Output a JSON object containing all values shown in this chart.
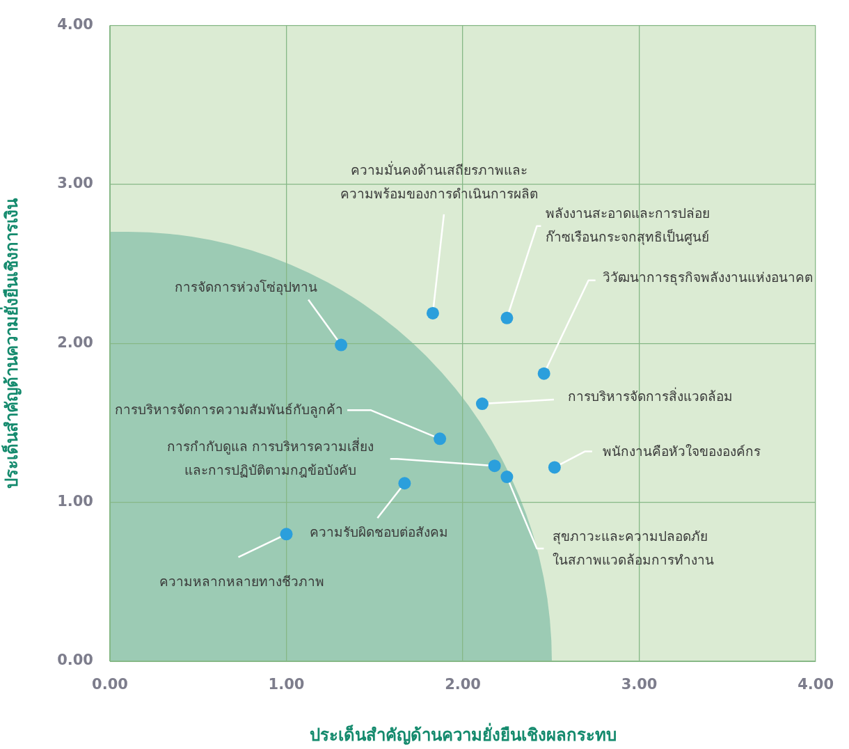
{
  "chart_data": {
    "type": "scatter",
    "xlabel": "ประเด็นสำคัญด้านความยั่งยืนเชิงผลกระทบ",
    "ylabel": "ประเด็นสำคัญด้านความยั่งยืนเชิงการเงิน",
    "xlim": [
      0,
      4
    ],
    "ylim": [
      0,
      4
    ],
    "xticks": [
      {
        "value": 0,
        "label": "0.00"
      },
      {
        "value": 1,
        "label": "1.00"
      },
      {
        "value": 2,
        "label": "2.00"
      },
      {
        "value": 3,
        "label": "3.00"
      },
      {
        "value": 4,
        "label": "4.00"
      }
    ],
    "yticks": [
      {
        "value": 0,
        "label": "0.00"
      },
      {
        "value": 1,
        "label": "1.00"
      },
      {
        "value": 2,
        "label": "2.00"
      },
      {
        "value": 3,
        "label": "3.00"
      },
      {
        "value": 4,
        "label": "4.00"
      }
    ],
    "grid": true,
    "legend": false,
    "marker": "circle",
    "series": [
      {
        "color": "#2b9fdc",
        "x": [
          1.0,
          1.67,
          1.31,
          1.87,
          1.83,
          2.25,
          2.46,
          2.11,
          2.18,
          2.25,
          2.52
        ],
        "values": [
          0.8,
          1.12,
          1.99,
          1.4,
          2.19,
          2.16,
          1.81,
          1.62,
          1.23,
          1.16,
          1.22
        ]
      }
    ],
    "annotations": [
      {
        "text": "ความหลากหลายทางชีวภาพ",
        "x": 1.0,
        "y": 0.8
      },
      {
        "text": "ความรับผิดชอบต่อสังคม",
        "x": 1.67,
        "y": 1.12
      },
      {
        "text": "การจัดการห่วงโซ่อุปทาน",
        "x": 1.31,
        "y": 1.99
      },
      {
        "text": "การบริหารจัดการความสัมพันธ์กับลูกค้า",
        "x": 1.87,
        "y": 1.4
      },
      {
        "text": "ความมั่นคงด้านเสถียรภาพและ\nความพร้อมของการดำเนินการผลิต",
        "x": 1.83,
        "y": 2.19
      },
      {
        "text": "พลังงานสะอาดและการปล่อย\nก๊าซเรือนกระจกสุทธิเป็นศูนย์",
        "x": 2.25,
        "y": 2.16
      },
      {
        "text": "วิวัฒนาการธุรกิจพลังงานแห่งอนาคต",
        "x": 2.46,
        "y": 1.81
      },
      {
        "text": "การบริหารจัดการสิ่งแวดล้อม",
        "x": 2.11,
        "y": 1.62
      },
      {
        "text": "การกำกับดูแล การบริหารความเสี่ยง\nและการปฏิบัติตามกฎข้อบังคับ",
        "x": 2.18,
        "y": 1.23
      },
      {
        "text": "สุขภาวะและความปลอดภัย\nในสภาพแวดล้อมการทำงาน",
        "x": 2.25,
        "y": 1.16
      },
      {
        "text": "พนักงานคือหัวใจขององค์กร",
        "x": 2.52,
        "y": 1.22
      }
    ]
  }
}
